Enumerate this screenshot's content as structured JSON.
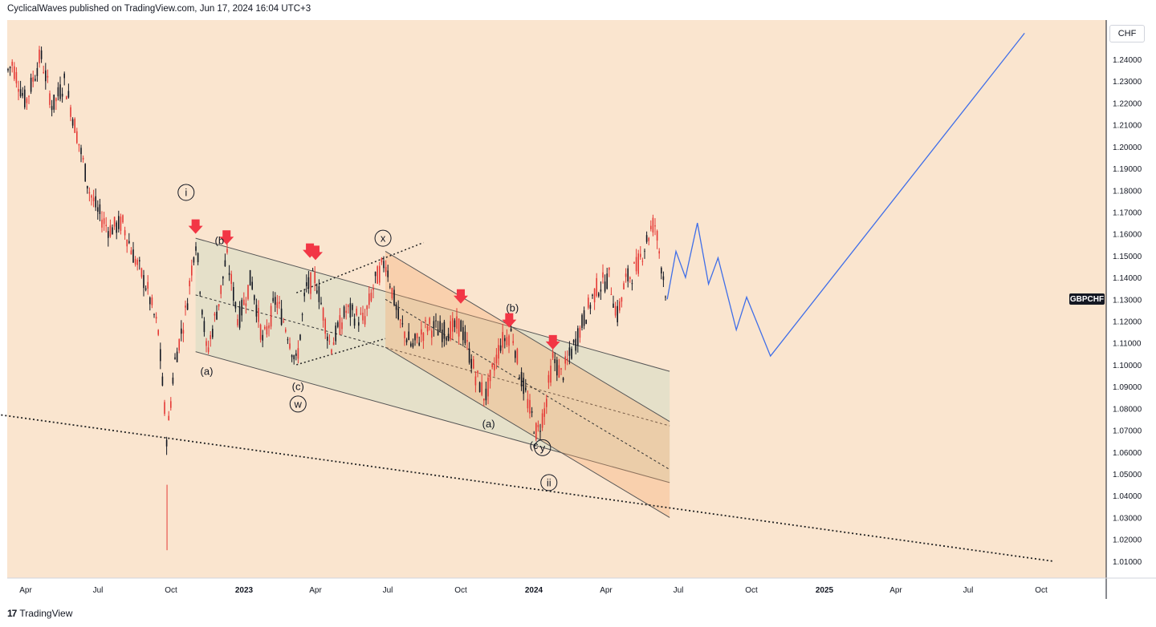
{
  "header": {
    "publisher": "CyclicalWaves published on TradingView.com, Jun 17, 2024 16:04 UTC+3"
  },
  "footer": {
    "brand": "TradingView"
  },
  "colors": {
    "background": "#fae5cf",
    "up": "#131722",
    "down": "#e53935",
    "projection": "#3f6ee8",
    "arrow": "#f23645"
  },
  "chart_data": {
    "type": "candlestick",
    "symbol": "GBPCHF",
    "currency": "CHF",
    "ylim": [
      1.0,
      1.25
    ],
    "y_ticks": [
      "1.24000",
      "1.23000",
      "1.22000",
      "1.21000",
      "1.20000",
      "1.19000",
      "1.18000",
      "1.17000",
      "1.16000",
      "1.15000",
      "1.14000",
      "1.13000",
      "1.12000",
      "1.11000",
      "1.10000",
      "1.09000",
      "1.08000",
      "1.07000",
      "1.06000",
      "1.05000",
      "1.04000",
      "1.03000",
      "1.02000",
      "1.01000"
    ],
    "x_ticks": [
      {
        "label": "Apr",
        "date": "2022-04"
      },
      {
        "label": "Jul",
        "date": "2022-07"
      },
      {
        "label": "Oct",
        "date": "2022-10"
      },
      {
        "label": "2023",
        "date": "2023-01"
      },
      {
        "label": "Apr",
        "date": "2023-04"
      },
      {
        "label": "Jul",
        "date": "2023-07"
      },
      {
        "label": "Oct",
        "date": "2023-10"
      },
      {
        "label": "2024",
        "date": "2024-01"
      },
      {
        "label": "Apr",
        "date": "2024-04"
      },
      {
        "label": "Jul",
        "date": "2024-07"
      },
      {
        "label": "Oct",
        "date": "2024-10"
      },
      {
        "label": "2025",
        "date": "2025-01"
      },
      {
        "label": "Apr",
        "date": "2025-04"
      },
      {
        "label": "Jul",
        "date": "2025-07"
      },
      {
        "label": "Oct",
        "date": "2025-10"
      }
    ],
    "price_path": [
      [
        "2022-03-01",
        1.23
      ],
      [
        "2022-03-15",
        1.238
      ],
      [
        "2022-04-01",
        1.22
      ],
      [
        "2022-04-20",
        1.242
      ],
      [
        "2022-05-05",
        1.218
      ],
      [
        "2022-05-20",
        1.23
      ],
      [
        "2022-06-05",
        1.205
      ],
      [
        "2022-06-20",
        1.18
      ],
      [
        "2022-07-01",
        1.17
      ],
      [
        "2022-07-15",
        1.162
      ],
      [
        "2022-08-01",
        1.165
      ],
      [
        "2022-08-15",
        1.15
      ],
      [
        "2022-09-01",
        1.135
      ],
      [
        "2022-09-15",
        1.115
      ],
      [
        "2022-09-26",
        1.065
      ],
      [
        "2022-10-05",
        1.1
      ],
      [
        "2022-10-20",
        1.125
      ],
      [
        "2022-11-01",
        1.158
      ],
      [
        "2022-11-15",
        1.105
      ],
      [
        "2022-12-01",
        1.13
      ],
      [
        "2022-12-10",
        1.15
      ],
      [
        "2022-12-25",
        1.12
      ],
      [
        "2023-01-10",
        1.14
      ],
      [
        "2023-01-25",
        1.11
      ],
      [
        "2023-02-10",
        1.13
      ],
      [
        "2023-02-25",
        1.115
      ],
      [
        "2023-03-08",
        1.1
      ],
      [
        "2023-03-20",
        1.135
      ],
      [
        "2023-04-01",
        1.14
      ],
      [
        "2023-04-20",
        1.108
      ],
      [
        "2023-05-10",
        1.125
      ],
      [
        "2023-06-01",
        1.12
      ],
      [
        "2023-06-15",
        1.138
      ],
      [
        "2023-06-28",
        1.148
      ],
      [
        "2023-07-15",
        1.12
      ],
      [
        "2023-08-01",
        1.108
      ],
      [
        "2023-08-20",
        1.118
      ],
      [
        "2023-09-10",
        1.115
      ],
      [
        "2023-10-01",
        1.118
      ],
      [
        "2023-10-20",
        1.095
      ],
      [
        "2023-11-01",
        1.085
      ],
      [
        "2023-11-20",
        1.11
      ],
      [
        "2023-12-05",
        1.115
      ],
      [
        "2023-12-15",
        1.095
      ],
      [
        "2023-12-28",
        1.078
      ],
      [
        "2024-01-05",
        1.068
      ],
      [
        "2024-01-15",
        1.08
      ],
      [
        "2024-01-25",
        1.103
      ],
      [
        "2024-02-05",
        1.095
      ],
      [
        "2024-02-20",
        1.108
      ],
      [
        "2024-03-05",
        1.122
      ],
      [
        "2024-03-20",
        1.135
      ],
      [
        "2024-04-05",
        1.14
      ],
      [
        "2024-04-15",
        1.122
      ],
      [
        "2024-04-25",
        1.138
      ],
      [
        "2024-05-10",
        1.145
      ],
      [
        "2024-05-25",
        1.16
      ],
      [
        "2024-06-01",
        1.166
      ],
      [
        "2024-06-10",
        1.145
      ],
      [
        "2024-06-17",
        1.13
      ]
    ],
    "projection": [
      [
        "2024-06-17",
        1.13
      ],
      [
        "2024-06-28",
        1.152
      ],
      [
        "2024-07-10",
        1.14
      ],
      [
        "2024-07-25",
        1.165
      ],
      [
        "2024-08-08",
        1.137
      ],
      [
        "2024-08-20",
        1.149
      ],
      [
        "2024-09-12",
        1.116
      ],
      [
        "2024-09-25",
        1.131
      ],
      [
        "2024-10-25",
        1.104
      ],
      [
        "2025-09-10",
        1.252
      ]
    ],
    "wave_labels": [
      "i",
      "(b",
      "(a)",
      "(c)",
      "w",
      "x",
      "(a)",
      "(b)",
      "(c",
      "y",
      "ii"
    ],
    "sell_arrows": [
      "2022-11-01",
      "2022-12-10",
      "2023-03-25",
      "2023-04-01",
      "2023-10-01",
      "2023-12-01",
      "2024-01-25"
    ]
  }
}
